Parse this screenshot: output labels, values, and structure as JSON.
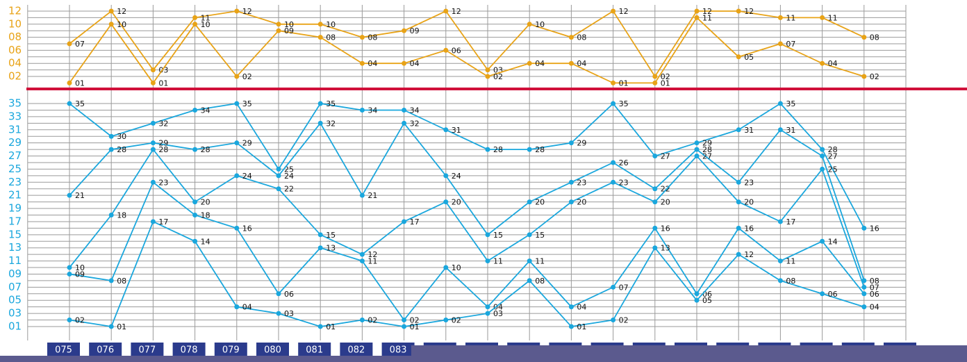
{
  "chart_data": [
    {
      "type": "line",
      "ylim": [
        0,
        13
      ],
      "yticks": [
        {
          "value": 2,
          "label": "02"
        },
        {
          "value": 4,
          "label": "04"
        },
        {
          "value": 6,
          "label": "06"
        },
        {
          "value": 8,
          "label": "08"
        },
        {
          "value": 10,
          "label": "10"
        },
        {
          "value": 12,
          "label": "12"
        }
      ],
      "axis_color": "#e8a317",
      "series": [
        {
          "color": "#e8a317",
          "values": [
            7,
            12,
            3,
            11,
            12,
            10,
            10,
            8,
            9,
            12,
            3,
            10,
            8,
            12,
            2,
            12,
            12,
            11,
            11,
            8,
            null
          ],
          "value_labels": [
            "07",
            "12",
            "03",
            "11",
            "12",
            "10",
            "10",
            "08",
            "09",
            "12",
            "03",
            "10",
            "08",
            "12",
            "02",
            "12",
            "12",
            "11",
            "11",
            "08",
            null
          ]
        },
        {
          "color": "#e8a317",
          "values": [
            1,
            10,
            1,
            10,
            2,
            9,
            8,
            4,
            4,
            6,
            2,
            4,
            4,
            1,
            1,
            11,
            5,
            7,
            4,
            2,
            null
          ],
          "value_labels": [
            "01",
            "10",
            "01",
            "10",
            "02",
            "09",
            "08",
            "04",
            "04",
            "06",
            "02",
            "04",
            "04",
            "01",
            "01",
            "11",
            "05",
            "07",
            "04",
            "02",
            null
          ]
        }
      ]
    },
    {
      "type": "line",
      "categories": [
        "075",
        "076",
        "077",
        "078",
        "079",
        "080",
        "081",
        "082",
        "083",
        null,
        null,
        null,
        null,
        null,
        null,
        null,
        null,
        null,
        null,
        null,
        null
      ],
      "ylim": [
        0,
        36
      ],
      "yticks": [
        {
          "value": 1,
          "label": "01"
        },
        {
          "value": 3,
          "label": "03"
        },
        {
          "value": 5,
          "label": "05"
        },
        {
          "value": 7,
          "label": "07"
        },
        {
          "value": 9,
          "label": "09"
        },
        11,
        13,
        15,
        17,
        19,
        21,
        23,
        25,
        27,
        29,
        31,
        33,
        35
      ],
      "axis_color": "#1aa7dd",
      "series": [
        {
          "color": "#1aa7dd",
          "values": [
            35,
            30,
            32,
            34,
            35,
            25,
            35,
            34,
            34,
            31,
            28,
            28,
            29,
            35,
            27,
            29,
            31,
            35,
            28,
            16,
            null
          ],
          "value_labels": [
            "35",
            "30",
            "32",
            "34",
            "35",
            "25",
            "35",
            "34",
            "34",
            "31",
            "28",
            "28",
            "29",
            "35",
            "27",
            "29",
            "31",
            "35",
            "28",
            "16",
            null
          ]
        },
        {
          "color": "#1aa7dd",
          "values": [
            21,
            28,
            29,
            28,
            29,
            24,
            32,
            21,
            32,
            24,
            15,
            20,
            23,
            26,
            22,
            28,
            23,
            31,
            27,
            8,
            null
          ],
          "value_labels": [
            "21",
            "28",
            "29",
            "28",
            "29",
            "24",
            "32",
            "21",
            "32",
            "24",
            "15",
            "20",
            "23",
            "26",
            "22",
            "28",
            "23",
            "31",
            "27",
            "08",
            null
          ]
        },
        {
          "color": "#1aa7dd",
          "values": [
            10,
            18,
            28,
            20,
            24,
            22,
            15,
            12,
            17,
            20,
            11,
            15,
            20,
            23,
            20,
            27,
            20,
            17,
            25,
            7,
            null
          ],
          "value_labels": [
            "10",
            "18",
            "28",
            "20",
            "24",
            "22",
            "15",
            "12",
            "17",
            "20",
            "11",
            "15",
            "20",
            "23",
            "20",
            "27",
            "20",
            "17",
            "25",
            "07",
            null
          ]
        },
        {
          "color": "#1aa7dd",
          "values": [
            9,
            8,
            23,
            18,
            16,
            6,
            13,
            11,
            2,
            10,
            4,
            11,
            4,
            7,
            16,
            6,
            16,
            11,
            14,
            6,
            null
          ],
          "value_labels": [
            "09",
            "08",
            "23",
            "18",
            "16",
            "06",
            "13",
            "11",
            "02",
            "10",
            "04",
            "11",
            "04",
            "07",
            "16",
            "06",
            "16",
            "11",
            "14",
            "06",
            null
          ]
        },
        {
          "color": "#1aa7dd",
          "values": [
            2,
            1,
            17,
            14,
            4,
            3,
            1,
            2,
            1,
            2,
            3,
            8,
            1,
            2,
            13,
            5,
            12,
            8,
            6,
            4,
            null
          ],
          "value_labels": [
            "02",
            "01",
            "17",
            "14",
            "04",
            "03",
            "01",
            "02",
            "01",
            "02",
            "03",
            "08",
            "01",
            "02",
            "13",
            "05",
            "12",
            "08",
            "06",
            "04",
            null
          ]
        }
      ]
    }
  ]
}
